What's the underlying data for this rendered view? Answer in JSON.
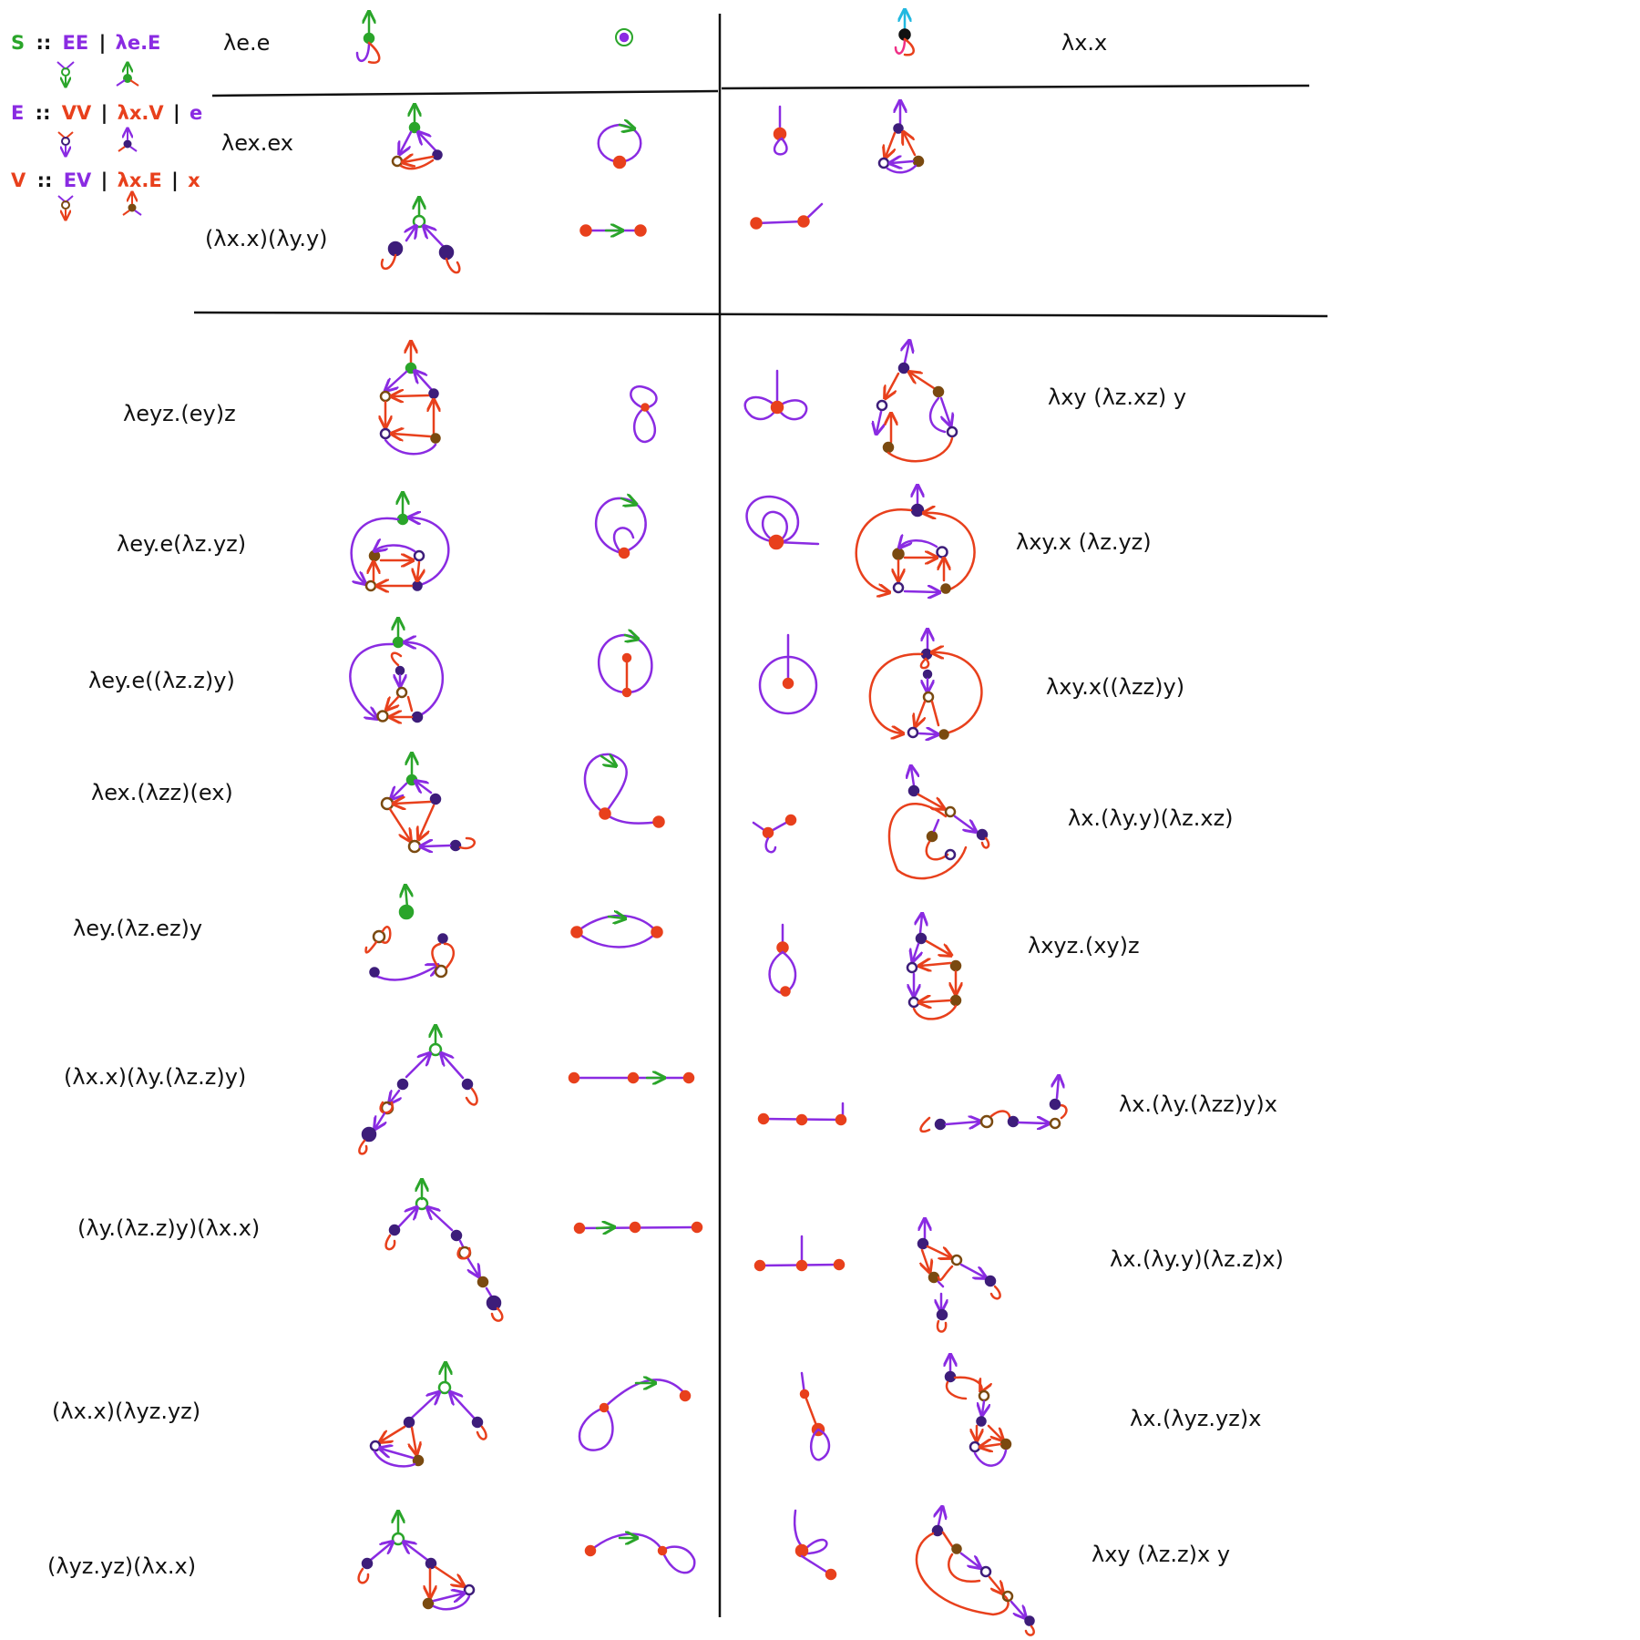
{
  "colors": {
    "green": "#2aa52a",
    "purple": "#8a2be2",
    "red": "#e8401c",
    "brown": "#7a4a10",
    "navy": "#3d1d7a",
    "cyan": "#22b8e0",
    "pink": "#ef2f86",
    "black": "#111111"
  },
  "grammar": [
    {
      "nt": "S",
      "sep": "::",
      "alts": [
        "EE",
        "λe.E"
      ]
    },
    {
      "nt": "E",
      "sep": "::",
      "alts": [
        "VV",
        "λx.V",
        "e"
      ]
    },
    {
      "nt": "V",
      "sep": "::",
      "alts": [
        "EV",
        "λx.E",
        "x"
      ]
    }
  ],
  "header": {
    "left_term": "λe.e",
    "right_term": "λx.x"
  },
  "section1": {
    "left": [
      "λex.ex",
      "(λx.x)(λy.y)"
    ]
  },
  "section2": {
    "left": [
      "λeyz.(ey)z",
      "λey.e(λz.yz)",
      "λey.e((λz.z)y)",
      "λex.(λzz)(ex)",
      "λey.(λz.ez)y",
      "(λx.x)(λy.(λz.z)y)",
      "(λy.(λz.z)y)(λx.x)",
      "(λx.x)(λyz.yz)",
      "(λyz.yz)(λx.x)"
    ],
    "right": [
      "λxy (λz.xz) y",
      "λxy.x (λz.yz)",
      "λxy.x((λzz)y)",
      "λx.(λy.y)(λz.xz)",
      "λxyz.(xy)z",
      "λx.(λy.(λzz)y)x",
      "λx.(λy.y)(λz.z)x)",
      "λx.(λyz.yz)x",
      "λxy (λz.z)x y"
    ]
  },
  "icons": [
    "root-arrow-icon",
    "loop-icon",
    "vertex-dot-icon",
    "hollow-vertex-icon"
  ]
}
